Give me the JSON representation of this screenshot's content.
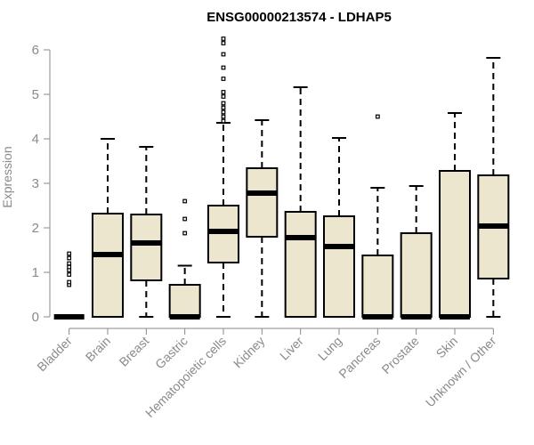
{
  "chart_data": {
    "type": "boxplot",
    "title": "ENSG00000213574 - LDHAP5",
    "xlabel": "",
    "ylabel": "Expression",
    "ylim": [
      0,
      6
    ],
    "yticks": [
      0,
      1,
      2,
      3,
      4,
      5,
      6
    ],
    "box_fill": "#ede6cf",
    "categories": [
      "Bladder",
      "Brain",
      "Breast",
      "Gastric",
      "Hematopoietic cells",
      "Kidney",
      "Liver",
      "Lung",
      "Pancreas",
      "Prostate",
      "Skin",
      "Unknown / Other"
    ],
    "boxes": [
      {
        "name": "Bladder",
        "min": 0,
        "q1": 0,
        "median": 0,
        "q3": 0,
        "max": 0,
        "outliers": [
          0.72,
          0.78,
          0.95,
          1.05,
          1.12,
          1.2,
          1.32,
          1.42
        ]
      },
      {
        "name": "Brain",
        "min": 0,
        "q1": 0,
        "median": 1.4,
        "q3": 2.32,
        "max": 4.0,
        "outliers": []
      },
      {
        "name": "Breast",
        "min": 0,
        "q1": 0.82,
        "median": 1.66,
        "q3": 2.3,
        "max": 3.82,
        "outliers": []
      },
      {
        "name": "Gastric",
        "min": 0,
        "q1": 0,
        "median": 0,
        "q3": 0.72,
        "max": 1.15,
        "outliers": [
          1.88,
          2.2,
          2.6
        ]
      },
      {
        "name": "Hematopoietic cells",
        "min": 0,
        "q1": 1.22,
        "median": 1.92,
        "q3": 2.5,
        "max": 4.36,
        "outliers": [
          4.4,
          4.5,
          4.6,
          4.7,
          4.8,
          4.95,
          5.05,
          5.35,
          5.6,
          5.9,
          6.15,
          6.25
        ]
      },
      {
        "name": "Kidney",
        "min": 0,
        "q1": 1.8,
        "median": 2.78,
        "q3": 3.34,
        "max": 4.42,
        "outliers": []
      },
      {
        "name": "Liver",
        "min": 0,
        "q1": 0,
        "median": 1.78,
        "q3": 2.36,
        "max": 5.16,
        "outliers": []
      },
      {
        "name": "Lung",
        "min": 0,
        "q1": 0,
        "median": 1.58,
        "q3": 2.26,
        "max": 4.02,
        "outliers": []
      },
      {
        "name": "Pancreas",
        "min": 0,
        "q1": 0,
        "median": 0,
        "q3": 1.38,
        "max": 2.9,
        "outliers": [
          4.5
        ]
      },
      {
        "name": "Prostate",
        "min": 0,
        "q1": 0,
        "median": 0,
        "q3": 1.88,
        "max": 2.94,
        "outliers": []
      },
      {
        "name": "Skin",
        "min": 0,
        "q1": 0,
        "median": 0,
        "q3": 3.28,
        "max": 4.58,
        "outliers": []
      },
      {
        "name": "Unknown / Other",
        "min": 0,
        "q1": 0.86,
        "median": 2.04,
        "q3": 3.18,
        "max": 5.82,
        "outliers": []
      }
    ]
  }
}
